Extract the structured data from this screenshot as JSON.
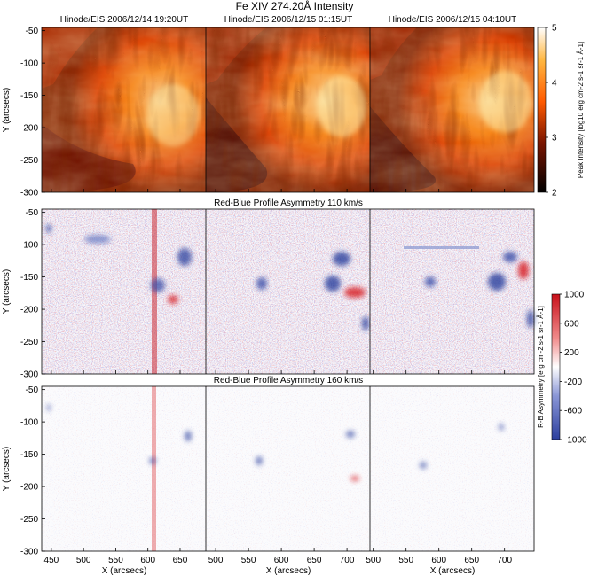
{
  "figure": {
    "main_title": "Fe XIV 274.20Å Intensity",
    "panel_titles": [
      "Hinode/EIS 2006/12/14 19:20UT",
      "Hinode/EIS 2006/12/15 01:15UT",
      "Hinode/EIS 2006/12/15 04:10UT"
    ],
    "row_titles": [
      "Red-Blue Profile Asymmetry 110 km/s",
      "Red-Blue Profile Asymmetry 160 km/s"
    ],
    "ylabel": "Y (arcsecs)",
    "xlabel": "X (arcsecs)",
    "colorbar_intensity_label": "Peak Intensity [log10 erg cm-2 s-1 sr-1 Å-1]",
    "colorbar_asym_label": "R-B Asymmetry [erg cm-2 s-1 sr-1 Å-1]",
    "y_ticks": [
      "-50",
      "-100",
      "-150",
      "-200",
      "-250",
      "-300"
    ],
    "x_ticks_col1": [
      "450",
      "500",
      "550",
      "600",
      "650"
    ],
    "x_ticks_col2": [
      "500",
      "550",
      "600",
      "650",
      "700"
    ],
    "x_ticks_col3": [
      "500",
      "550",
      "600",
      "650",
      "700"
    ],
    "colorbar_intensity_ticks": [
      "5",
      "4",
      "3",
      "2"
    ],
    "colorbar_asym_ticks": [
      "1000",
      "600",
      "200",
      "-200",
      "-600",
      "-1000"
    ],
    "colors": {
      "intensity_high": "#fff1a8",
      "intensity_mid": "#ff6a00",
      "intensity_low": "#2a0500",
      "asym_red": "#d7191c",
      "asym_blue": "#2c3f9e"
    }
  },
  "chart_data": {
    "type": "heatmap",
    "title": "Fe XIV 274.20Å Intensity",
    "xlabel": "X (arcsecs)",
    "ylabel": "Y (arcsecs)",
    "ylim": [
      -300,
      -45
    ],
    "xlim_col1": [
      435,
      690
    ],
    "xlim_col2": [
      485,
      735
    ],
    "xlim_col3": [
      495,
      745
    ],
    "intensity_colorbar_range": [
      2,
      5
    ],
    "asymmetry_colorbar_range": [
      -1000,
      1000
    ]
  }
}
